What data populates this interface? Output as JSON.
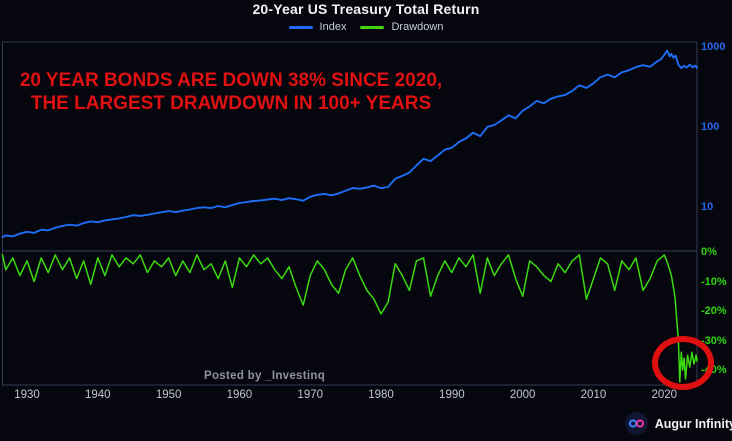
{
  "title": "20-Year US Treasury Total Return",
  "legend": [
    {
      "label": "Index",
      "color": "#1e6cf5"
    },
    {
      "label": "Drawdown",
      "color": "#3fd414"
    }
  ],
  "annotation": {
    "text": "20 YEAR BONDS ARE DOWN 38% SINCE 2020, THE LARGEST DRAWDOWN IN 100+ YEARS",
    "color": "#e11111"
  },
  "watermark": "Posted by _Investinq",
  "footer": {
    "brand": "Augur Infinity",
    "logo_icon": "infinity-icon"
  },
  "highlight": {
    "shape": "red-circle",
    "around": "2020s drawdown low",
    "color": "#e01010"
  },
  "chart_data": {
    "type": "line",
    "title": "20-Year US Treasury Total Return",
    "x_axis": {
      "range": [
        1926,
        2025
      ],
      "ticks": [
        1930,
        1940,
        1950,
        1960,
        1970,
        1980,
        1990,
        2000,
        2010,
        2020
      ]
    },
    "panels": [
      {
        "name": "index",
        "series_name": "Index",
        "color": "#1d6ef5",
        "scale": "log",
        "ticks": [
          1000,
          100,
          10
        ],
        "ylim": [
          3,
          1150
        ],
        "points": [
          [
            1926,
            4.2
          ],
          [
            1927,
            4.4
          ],
          [
            1928,
            4.3
          ],
          [
            1929,
            4.65
          ],
          [
            1930,
            4.9
          ],
          [
            1931,
            4.75
          ],
          [
            1932,
            5.2
          ],
          [
            1933,
            5.1
          ],
          [
            1934,
            5.5
          ],
          [
            1935,
            5.8
          ],
          [
            1936,
            6.0
          ],
          [
            1937,
            5.85
          ],
          [
            1938,
            6.3
          ],
          [
            1939,
            6.6
          ],
          [
            1940,
            6.45
          ],
          [
            1941,
            6.8
          ],
          [
            1942,
            7.0
          ],
          [
            1943,
            7.2
          ],
          [
            1944,
            7.5
          ],
          [
            1945,
            7.9
          ],
          [
            1946,
            7.75
          ],
          [
            1947,
            8.0
          ],
          [
            1948,
            8.3
          ],
          [
            1949,
            8.6
          ],
          [
            1950,
            8.9
          ],
          [
            1951,
            8.6
          ],
          [
            1952,
            9.0
          ],
          [
            1953,
            9.3
          ],
          [
            1954,
            9.7
          ],
          [
            1955,
            9.9
          ],
          [
            1956,
            9.7
          ],
          [
            1957,
            10.3
          ],
          [
            1958,
            9.9
          ],
          [
            1959,
            10.6
          ],
          [
            1960,
            11.2
          ],
          [
            1961,
            11.5
          ],
          [
            1962,
            11.9
          ],
          [
            1963,
            12.1
          ],
          [
            1964,
            12.4
          ],
          [
            1965,
            12.7
          ],
          [
            1966,
            12.2
          ],
          [
            1967,
            12.9
          ],
          [
            1968,
            12.5
          ],
          [
            1969,
            12.0
          ],
          [
            1970,
            13.4
          ],
          [
            1971,
            14.2
          ],
          [
            1972,
            14.6
          ],
          [
            1973,
            14.0
          ],
          [
            1974,
            14.8
          ],
          [
            1975,
            16.0
          ],
          [
            1976,
            17.3
          ],
          [
            1977,
            16.9
          ],
          [
            1978,
            17.6
          ],
          [
            1979,
            18.5
          ],
          [
            1980,
            17.2
          ],
          [
            1981,
            17.8
          ],
          [
            1982,
            22.5
          ],
          [
            1983,
            24.5
          ],
          [
            1984,
            27.0
          ],
          [
            1985,
            33.0
          ],
          [
            1986,
            40.0
          ],
          [
            1987,
            37.5
          ],
          [
            1988,
            44.0
          ],
          [
            1989,
            52.0
          ],
          [
            1990,
            55.0
          ],
          [
            1991,
            65.0
          ],
          [
            1992,
            72.0
          ],
          [
            1993,
            85.0
          ],
          [
            1994,
            77.0
          ],
          [
            1995,
            100.0
          ],
          [
            1996,
            106.0
          ],
          [
            1997,
            121.0
          ],
          [
            1998,
            140.0
          ],
          [
            1999,
            128.0
          ],
          [
            2000,
            160.0
          ],
          [
            2001,
            181.0
          ],
          [
            2002,
            212.0
          ],
          [
            2003,
            198.0
          ],
          [
            2004,
            226.0
          ],
          [
            2005,
            241.0
          ],
          [
            2006,
            252.0
          ],
          [
            2007,
            282.0
          ],
          [
            2008,
            332.0
          ],
          [
            2009,
            308.0
          ],
          [
            2010,
            352.0
          ],
          [
            2011,
            420.0
          ],
          [
            2012,
            452.0
          ],
          [
            2013,
            418.0
          ],
          [
            2014,
            482.0
          ],
          [
            2015,
            512.0
          ],
          [
            2016,
            560.0
          ],
          [
            2017,
            592.0
          ],
          [
            2018,
            565.0
          ],
          [
            2019,
            660.0
          ],
          [
            2019.5,
            700
          ],
          [
            2020,
            800
          ],
          [
            2020.4,
            900
          ],
          [
            2020.8,
            760
          ],
          [
            2021,
            820
          ],
          [
            2021.3,
            735
          ],
          [
            2021.6,
            780
          ],
          [
            2022,
            600
          ],
          [
            2022.4,
            545
          ],
          [
            2022.8,
            582
          ],
          [
            2023.2,
            552
          ],
          [
            2023.6,
            602
          ],
          [
            2024,
            558
          ],
          [
            2024.4,
            585
          ],
          [
            2024.8,
            548
          ],
          [
            2025,
            560
          ]
        ]
      },
      {
        "name": "drawdown",
        "series_name": "Drawdown",
        "color": "#3bdb0e",
        "scale": "linear",
        "unit": "%",
        "ticks": [
          {
            "label": "0%",
            "value": 0
          },
          {
            "label": "-10%",
            "value": -10
          },
          {
            "label": "-20%",
            "value": -20
          },
          {
            "label": "-30%",
            "value": -30
          },
          {
            "label": "-40%",
            "value": -40
          }
        ],
        "ylim": [
          0,
          -45
        ],
        "points": [
          [
            1926,
            -1
          ],
          [
            1927,
            -6
          ],
          [
            1928,
            -2
          ],
          [
            1929,
            -8
          ],
          [
            1930,
            -3
          ],
          [
            1931,
            -10
          ],
          [
            1932,
            -2
          ],
          [
            1933,
            -7
          ],
          [
            1934,
            -1
          ],
          [
            1935,
            -6
          ],
          [
            1936,
            -2
          ],
          [
            1937,
            -9
          ],
          [
            1938,
            -3
          ],
          [
            1939,
            -11
          ],
          [
            1940,
            -2
          ],
          [
            1941,
            -8
          ],
          [
            1942,
            -1
          ],
          [
            1943,
            -5
          ],
          [
            1944,
            -2
          ],
          [
            1945,
            -4
          ],
          [
            1946,
            -1
          ],
          [
            1947,
            -7
          ],
          [
            1948,
            -3
          ],
          [
            1949,
            -5
          ],
          [
            1950,
            -2
          ],
          [
            1951,
            -8
          ],
          [
            1952,
            -3
          ],
          [
            1953,
            -7
          ],
          [
            1954,
            -1
          ],
          [
            1955,
            -6
          ],
          [
            1956,
            -4
          ],
          [
            1957,
            -9
          ],
          [
            1958,
            -3
          ],
          [
            1959,
            -12
          ],
          [
            1960,
            -2
          ],
          [
            1961,
            -5
          ],
          [
            1962,
            -1
          ],
          [
            1963,
            -4
          ],
          [
            1964,
            -2
          ],
          [
            1965,
            -6
          ],
          [
            1966,
            -9
          ],
          [
            1967,
            -5
          ],
          [
            1968,
            -12
          ],
          [
            1969,
            -18
          ],
          [
            1970,
            -8
          ],
          [
            1971,
            -3
          ],
          [
            1972,
            -6
          ],
          [
            1973,
            -11
          ],
          [
            1974,
            -14
          ],
          [
            1975,
            -6
          ],
          [
            1976,
            -2
          ],
          [
            1977,
            -8
          ],
          [
            1978,
            -13
          ],
          [
            1979,
            -16
          ],
          [
            1980,
            -21
          ],
          [
            1981,
            -17
          ],
          [
            1982,
            -4
          ],
          [
            1983,
            -8
          ],
          [
            1984,
            -13
          ],
          [
            1985,
            -3
          ],
          [
            1986,
            -2
          ],
          [
            1987,
            -15
          ],
          [
            1988,
            -8
          ],
          [
            1989,
            -3
          ],
          [
            1990,
            -7
          ],
          [
            1991,
            -2
          ],
          [
            1992,
            -5
          ],
          [
            1993,
            -1
          ],
          [
            1994,
            -14
          ],
          [
            1995,
            -2
          ],
          [
            1996,
            -8
          ],
          [
            1997,
            -4
          ],
          [
            1998,
            -1
          ],
          [
            1999,
            -9
          ],
          [
            2000,
            -15
          ],
          [
            2001,
            -3
          ],
          [
            2002,
            -5
          ],
          [
            2003,
            -8
          ],
          [
            2004,
            -10
          ],
          [
            2005,
            -4
          ],
          [
            2006,
            -7
          ],
          [
            2007,
            -3
          ],
          [
            2008,
            -1
          ],
          [
            2009,
            -16
          ],
          [
            2010,
            -9
          ],
          [
            2011,
            -2
          ],
          [
            2012,
            -4
          ],
          [
            2013,
            -13
          ],
          [
            2014,
            -3
          ],
          [
            2015,
            -6
          ],
          [
            2016,
            -2
          ],
          [
            2017,
            -13
          ],
          [
            2018,
            -9
          ],
          [
            2019,
            -3
          ],
          [
            2020,
            -1
          ],
          [
            2020.5,
            -4
          ],
          [
            2021,
            -8
          ],
          [
            2021.5,
            -15
          ],
          [
            2021.8,
            -24
          ],
          [
            2022,
            -30
          ],
          [
            2022.2,
            -44
          ],
          [
            2022.4,
            -34
          ],
          [
            2022.6,
            -40
          ],
          [
            2022.8,
            -36
          ],
          [
            2023,
            -43
          ],
          [
            2023.3,
            -35
          ],
          [
            2023.6,
            -39
          ],
          [
            2023.9,
            -34
          ],
          [
            2024.2,
            -38
          ],
          [
            2024.5,
            -35
          ],
          [
            2024.8,
            -37
          ],
          [
            2025,
            -36
          ]
        ]
      }
    ],
    "legend_position": "top-center",
    "grid": false
  }
}
